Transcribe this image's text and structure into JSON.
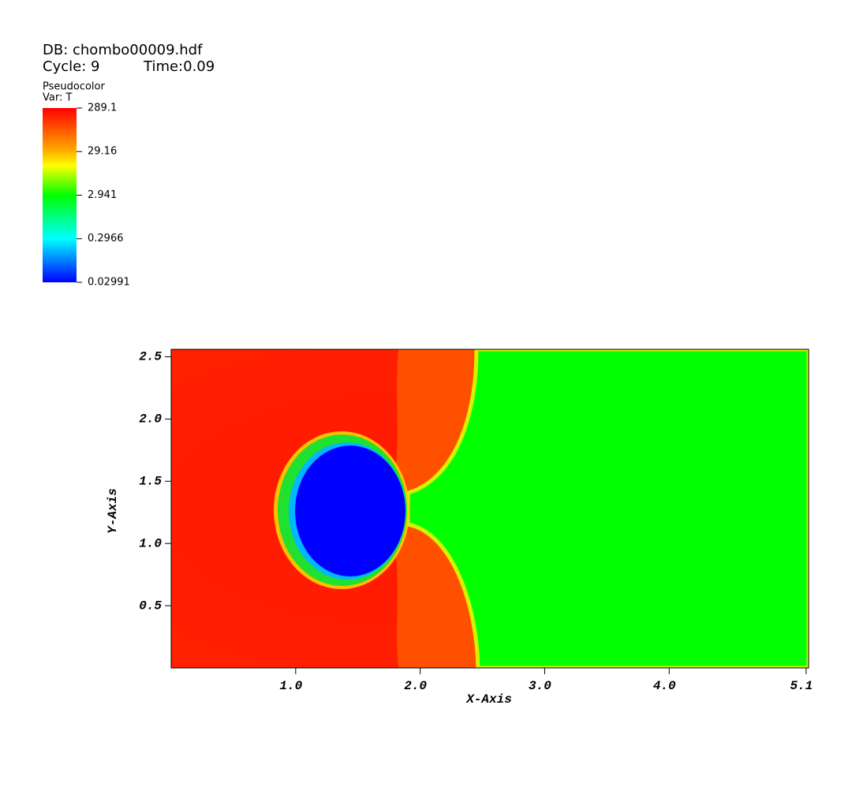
{
  "header": {
    "db": "DB: chombo00009.hdf",
    "cycle": "Cycle: 9",
    "time": "Time:0.09"
  },
  "legend": {
    "plot": "Pseudocolor",
    "var": "Var: T",
    "scale": "log",
    "ticks": [
      289.1,
      29.16,
      2.941,
      0.2966,
      0.02991
    ]
  },
  "chart_data": {
    "type": "pseudocolor",
    "xlabel": "X-Axis",
    "ylabel": "Y-Axis",
    "xlim": [
      0,
      5.12
    ],
    "ylim": [
      0,
      2.56
    ],
    "xticks": [
      {
        "value": 1,
        "label": "1.0"
      },
      {
        "value": 2,
        "label": "2.0"
      },
      {
        "value": 3,
        "label": "3.0"
      },
      {
        "value": 4,
        "label": "4.0"
      },
      5.1
    ],
    "yticks": [
      0.5,
      {
        "value": 1,
        "label": "1.0"
      },
      1.5,
      {
        "value": 2,
        "label": "2.0"
      },
      2.5
    ]
  }
}
